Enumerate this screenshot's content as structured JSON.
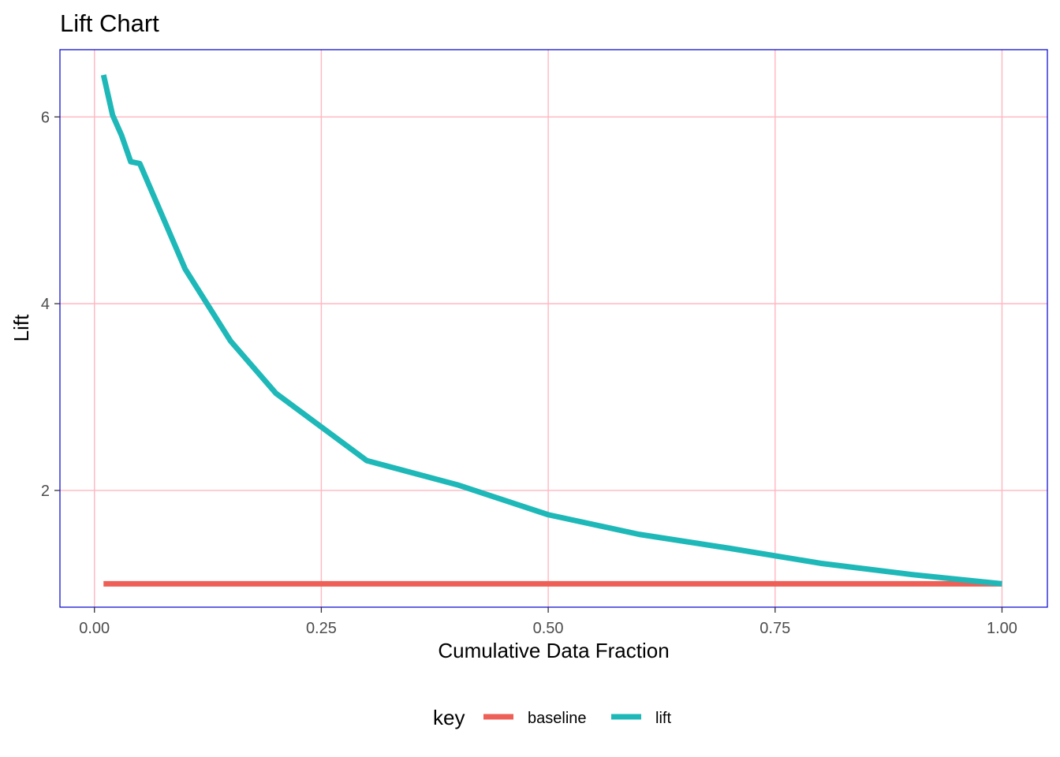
{
  "chart_data": {
    "type": "line",
    "title": "Lift Chart",
    "xlabel": "Cumulative Data Fraction",
    "ylabel": "Lift",
    "xlim": [
      -0.038,
      1.05
    ],
    "ylim": [
      0.75,
      6.72
    ],
    "x_ticks": [
      0,
      0.25,
      0.5,
      0.75,
      1
    ],
    "x_tick_labels": [
      "0.00",
      "0.25",
      "0.50",
      "0.75",
      "1.00"
    ],
    "y_ticks": [
      2,
      4,
      6
    ],
    "y_tick_labels": [
      "2",
      "4",
      "6"
    ],
    "grid": true,
    "grid_color": "#ffb6c1",
    "panel_border_color": "#0000cd",
    "legend": {
      "title": "key",
      "position": "bottom",
      "entries": [
        "baseline",
        "lift"
      ]
    },
    "series": [
      {
        "name": "baseline",
        "color": "#ee5f57",
        "x": [
          0.01,
          0.02,
          0.03,
          0.04,
          0.05,
          0.1,
          0.15,
          0.2,
          0.3,
          0.4,
          0.5,
          0.6,
          0.7,
          0.8,
          0.9,
          1.0
        ],
        "y": [
          1,
          1,
          1,
          1,
          1,
          1,
          1,
          1,
          1,
          1,
          1,
          1,
          1,
          1,
          1,
          1
        ]
      },
      {
        "name": "lift",
        "color": "#1fb8b8",
        "x": [
          0.01,
          0.02,
          0.03,
          0.04,
          0.05,
          0.1,
          0.15,
          0.2,
          0.3,
          0.4,
          0.5,
          0.6,
          0.7,
          0.8,
          0.9,
          1.0
        ],
        "y": [
          6.45,
          6.02,
          5.8,
          5.52,
          5.5,
          4.37,
          3.6,
          3.04,
          2.32,
          2.06,
          1.74,
          1.53,
          1.38,
          1.22,
          1.1,
          1.0
        ]
      }
    ]
  }
}
